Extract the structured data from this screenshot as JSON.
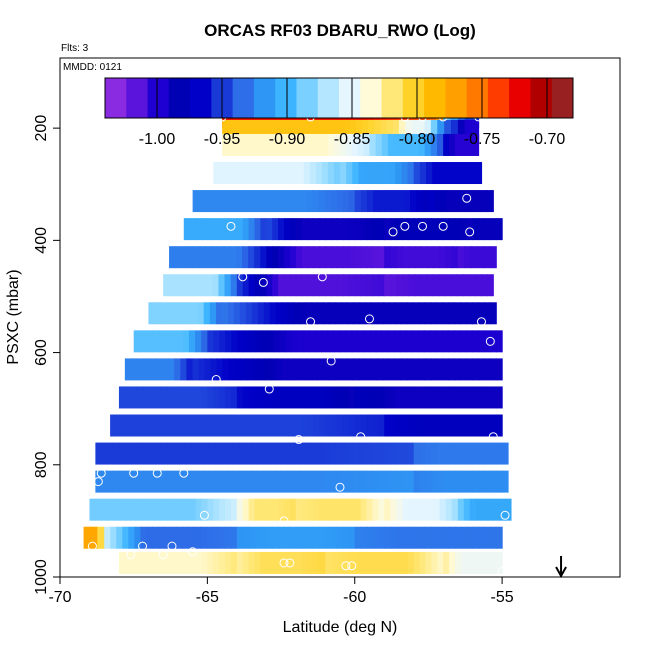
{
  "chart_data": {
    "type": "heatmap",
    "title": "ORCAS RF03 DBARU_RWO (Log)",
    "flights_note": "Flts: 3",
    "date_note": "MMDD: 0121",
    "xlabel": "Latitude (deg N)",
    "ylabel": "PSXC (mbar)",
    "xlim": [
      -70,
      -51
    ],
    "ylim": [
      1000,
      75
    ],
    "y_reversed": true,
    "x_ticks": [
      -70,
      -65,
      -60,
      -55
    ],
    "x_tick_labels": [
      "-70",
      "-65",
      "-60",
      "-55"
    ],
    "y_ticks": [
      200,
      400,
      600,
      800,
      1000
    ],
    "y_tick_labels": [
      "200",
      "400",
      "600",
      "800",
      "1000"
    ],
    "colorbar": {
      "range": [
        -1.04,
        -0.68
      ],
      "ticks": [
        -1.0,
        -0.95,
        -0.9,
        -0.85,
        -0.8,
        -0.75,
        -0.7
      ],
      "tick_labels": [
        "-1.00",
        "-0.95",
        "-0.90",
        "-0.85",
        "-0.80",
        "-0.75",
        "-0.70"
      ],
      "colors": [
        "#8a2be2",
        "#5a14dc",
        "#1e00d2",
        "#0000b4",
        "#0000c8",
        "#1a3ad8",
        "#2e6ee8",
        "#2e96f4",
        "#3cb4ff",
        "#7ad0ff",
        "#b4e6ff",
        "#e6f6ff",
        "#fffad8",
        "#ffe878",
        "#ffd22a",
        "#ffba00",
        "#ffa000",
        "#ff7800",
        "#ff3c00",
        "#e80000",
        "#b00000",
        "#982020"
      ]
    },
    "grid": false,
    "arrow_marker_lat": -53,
    "bands": [
      {
        "p": 180,
        "lat_start": -64.5,
        "segments": [
          {
            "to": -57.5,
            "v": -0.71
          },
          {
            "to": -57.0,
            "v": -0.75
          },
          {
            "to": -56.5,
            "v": -0.9
          },
          {
            "to": -55.8,
            "v": -0.96
          }
        ]
      },
      {
        "p": 205,
        "lat_start": -64.5,
        "segments": [
          {
            "to": -58.5,
            "v": -0.79
          },
          {
            "to": -57.2,
            "v": -0.84
          },
          {
            "to": -56.5,
            "v": -0.95
          },
          {
            "to": -55.8,
            "v": -1.0
          }
        ]
      },
      {
        "p": 230,
        "lat_start": -64.5,
        "segments": [
          {
            "to": -59.5,
            "v": -0.84
          },
          {
            "to": -57.0,
            "v": -0.9
          },
          {
            "to": -55.8,
            "v": -1.0
          }
        ]
      },
      {
        "p": 280,
        "lat_start": -64.8,
        "segments": [
          {
            "to": -60.5,
            "v": -0.85
          },
          {
            "to": -58.0,
            "v": -0.92
          },
          {
            "to": -55.7,
            "v": -0.97
          }
        ]
      },
      {
        "p": 330,
        "lat_start": -65.5,
        "segments": [
          {
            "to": -60.0,
            "v": -0.93
          },
          {
            "to": -57.5,
            "v": -0.96
          },
          {
            "to": -55.3,
            "v": -1.0
          }
        ]
      },
      {
        "p": 380,
        "lat_start": -65.8,
        "segments": [
          {
            "to": -63.0,
            "v": -0.9
          },
          {
            "to": -59.0,
            "v": -1.0
          },
          {
            "to": -56.0,
            "v": -0.98
          },
          {
            "to": -55.0,
            "v": -1.0
          }
        ]
      },
      {
        "p": 430,
        "lat_start": -66.3,
        "segments": [
          {
            "to": -63.0,
            "v": -0.93
          },
          {
            "to": -59.0,
            "v": -1.01
          },
          {
            "to": -56.5,
            "v": -1.02
          },
          {
            "to": -55.2,
            "v": -1.01
          }
        ]
      },
      {
        "p": 480,
        "lat_start": -66.5,
        "segments": [
          {
            "to": -64.0,
            "v": -0.88
          },
          {
            "to": -59.0,
            "v": -1.02
          },
          {
            "to": -55.3,
            "v": -1.01
          }
        ]
      },
      {
        "p": 530,
        "lat_start": -67.0,
        "segments": [
          {
            "to": -64.5,
            "v": -0.88
          },
          {
            "to": -55.2,
            "v": -1.0
          }
        ]
      },
      {
        "p": 580,
        "lat_start": -67.5,
        "segments": [
          {
            "to": -65.0,
            "v": -0.9
          },
          {
            "to": -55.0,
            "v": -1.0
          }
        ]
      },
      {
        "p": 630,
        "lat_start": -67.8,
        "segments": [
          {
            "to": -65.5,
            "v": -0.92
          },
          {
            "to": -55.0,
            "v": -1.0
          }
        ]
      },
      {
        "p": 680,
        "lat_start": -68.0,
        "segments": [
          {
            "to": -64.0,
            "v": -0.95
          },
          {
            "to": -60.0,
            "v": -0.97
          },
          {
            "to": -55.0,
            "v": -1.0
          }
        ]
      },
      {
        "p": 730,
        "lat_start": -68.3,
        "segments": [
          {
            "to": -59.0,
            "v": -0.96
          },
          {
            "to": -55.0,
            "v": -0.98
          }
        ]
      },
      {
        "p": 780,
        "lat_start": -68.8,
        "segments": [
          {
            "to": -58.0,
            "v": -0.95
          },
          {
            "to": -54.8,
            "v": -0.94
          }
        ]
      },
      {
        "p": 830,
        "lat_start": -68.8,
        "segments": [
          {
            "to": -58.0,
            "v": -0.93
          },
          {
            "to": -54.8,
            "v": -0.92
          }
        ]
      },
      {
        "p": 880,
        "lat_start": -69.0,
        "segments": [
          {
            "to": -64.0,
            "v": -0.88
          },
          {
            "to": -62.0,
            "v": -0.82
          },
          {
            "to": -59.0,
            "v": -0.81
          },
          {
            "to": -56.5,
            "v": -0.86
          },
          {
            "to": -54.7,
            "v": -0.91
          }
        ]
      },
      {
        "p": 930,
        "lat_start": -69.2,
        "segments": [
          {
            "to": -68.5,
            "v": -0.77
          },
          {
            "to": -64.0,
            "v": -0.93
          },
          {
            "to": -60.0,
            "v": -0.92
          },
          {
            "to": -55.0,
            "v": -0.93
          }
        ]
      },
      {
        "p": 975,
        "lat_start": -68.0,
        "segments": [
          {
            "to": -64.0,
            "v": -0.84
          },
          {
            "to": -61.0,
            "v": -0.81
          },
          {
            "to": -57.0,
            "v": -0.8
          },
          {
            "to": -55.0,
            "v": -0.85
          }
        ]
      }
    ],
    "points": [
      {
        "lat": -64.5,
        "p": 180
      },
      {
        "lat": -61.5,
        "p": 180
      },
      {
        "lat": -58.3,
        "p": 180
      },
      {
        "lat": -57.7,
        "p": 180
      },
      {
        "lat": -57.0,
        "p": 180
      },
      {
        "lat": -55.8,
        "p": 180
      },
      {
        "lat": -56.2,
        "p": 325
      },
      {
        "lat": -64.2,
        "p": 375
      },
      {
        "lat": -58.7,
        "p": 385
      },
      {
        "lat": -58.3,
        "p": 375
      },
      {
        "lat": -57.7,
        "p": 375
      },
      {
        "lat": -57.0,
        "p": 375
      },
      {
        "lat": -56.1,
        "p": 385
      },
      {
        "lat": -63.8,
        "p": 465
      },
      {
        "lat": -63.1,
        "p": 475
      },
      {
        "lat": -61.1,
        "p": 465
      },
      {
        "lat": -61.5,
        "p": 545
      },
      {
        "lat": -59.5,
        "p": 540
      },
      {
        "lat": -55.7,
        "p": 545
      },
      {
        "lat": -55.4,
        "p": 580
      },
      {
        "lat": -60.8,
        "p": 615
      },
      {
        "lat": -64.7,
        "p": 648
      },
      {
        "lat": -62.9,
        "p": 665
      },
      {
        "lat": -61.9,
        "p": 755
      },
      {
        "lat": -59.8,
        "p": 750
      },
      {
        "lat": -55.3,
        "p": 750
      },
      {
        "lat": -68.6,
        "p": 815
      },
      {
        "lat": -67.5,
        "p": 815
      },
      {
        "lat": -66.7,
        "p": 815
      },
      {
        "lat": -65.8,
        "p": 815
      },
      {
        "lat": -68.7,
        "p": 830
      },
      {
        "lat": -60.5,
        "p": 840
      },
      {
        "lat": -65.1,
        "p": 890
      },
      {
        "lat": -62.4,
        "p": 900
      },
      {
        "lat": -54.9,
        "p": 890
      },
      {
        "lat": -68.9,
        "p": 945
      },
      {
        "lat": -69.0,
        "p": 960
      },
      {
        "lat": -67.6,
        "p": 960
      },
      {
        "lat": -67.2,
        "p": 945
      },
      {
        "lat": -66.5,
        "p": 960
      },
      {
        "lat": -66.2,
        "p": 945
      },
      {
        "lat": -65.5,
        "p": 955
      },
      {
        "lat": -62.4,
        "p": 975
      },
      {
        "lat": -62.2,
        "p": 975
      },
      {
        "lat": -60.3,
        "p": 980
      },
      {
        "lat": -60.1,
        "p": 980
      },
      {
        "lat": -55.0,
        "p": 990
      }
    ]
  }
}
